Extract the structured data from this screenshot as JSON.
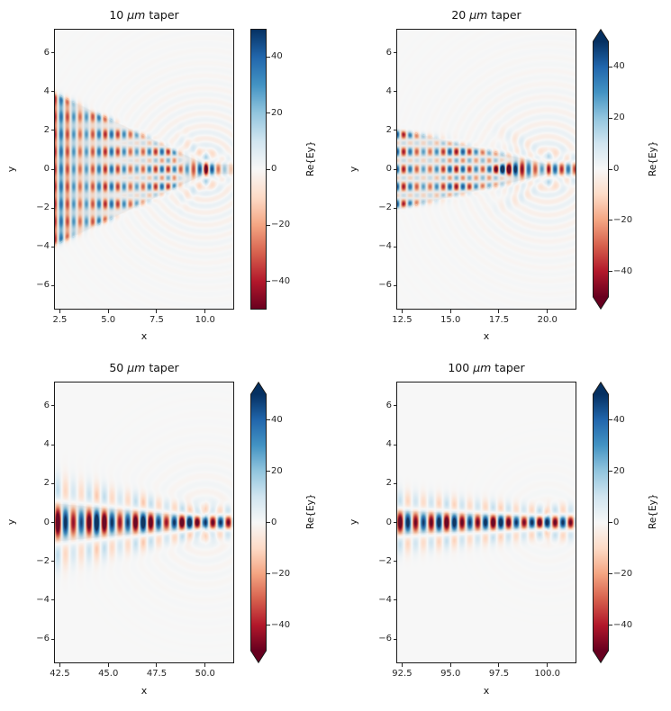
{
  "figure": {
    "kind": "matplotlib-style 2x2 field heatmaps",
    "background": "#ffffff",
    "colormap": "RdBu",
    "colormap_stops": [
      [
        103,
        0,
        31
      ],
      [
        178,
        24,
        43
      ],
      [
        214,
        96,
        77
      ],
      [
        244,
        165,
        130
      ],
      [
        253,
        219,
        199
      ],
      [
        247,
        247,
        247
      ],
      [
        209,
        229,
        240
      ],
      [
        146,
        197,
        222
      ],
      [
        67,
        147,
        195
      ],
      [
        33,
        102,
        172
      ],
      [
        5,
        48,
        97
      ]
    ],
    "plot_bg": "#f7f7f7",
    "structure_gray": [
      110,
      104,
      97
    ],
    "accent_dark_blue": "#053061",
    "accent_dark_red": "#67001f"
  },
  "chart_data": [
    {
      "type": "heatmap",
      "title": {
        "num": "10 ",
        "mu": "μm",
        "rest": " taper",
        "full": "10 μm taper"
      },
      "xlabel": "x",
      "ylabel": "y",
      "x_range": [
        2.2,
        11.5
      ],
      "y_range": [
        -7.25,
        7.25
      ],
      "x_tick_vals": [
        2.5,
        5.0,
        7.5,
        10.0
      ],
      "x_tick_labels": [
        "2.5",
        "5.0",
        "7.5",
        "10.0"
      ],
      "y_tick_vals": [
        -6,
        -4,
        -2,
        0,
        2,
        4,
        6
      ],
      "y_tick_labels": [
        "−6",
        "−4",
        "−2",
        "0",
        "2",
        "4",
        "6"
      ],
      "colorbar": {
        "label": "Re{Ey}",
        "tick_vals": [
          40,
          20,
          0,
          -20,
          -40
        ],
        "tick_labels": [
          "40",
          "20",
          "0",
          "−20",
          "−40"
        ],
        "vmin": -50,
        "vmax": 50,
        "extend": "neither"
      },
      "field": {
        "taper_length_um": 10,
        "base_halfwidth_um": 5,
        "tip_halfwidth_um": 0.25,
        "wavelength_x_um": 0.65,
        "period_y_um": 0.9,
        "amp_inside": 34,
        "mode": "multi",
        "mod_min": 0.15,
        "tip_boost": {
          "x": 10.0,
          "sigma": 0.6,
          "factor": 0.5
        },
        "beam_amp": 48,
        "beam_decay_um": 1.0,
        "arc_amp": 7,
        "arc_decay_um": 2.6,
        "beat_period_um": 2.8,
        "beat_depth": 0.18,
        "phase": 0.3
      }
    },
    {
      "type": "heatmap",
      "title": {
        "num": "20 ",
        "mu": "μm",
        "rest": " taper",
        "full": "20 μm taper"
      },
      "xlabel": "x",
      "ylabel": "y",
      "x_range": [
        12.2,
        21.5
      ],
      "y_range": [
        -7.25,
        7.25
      ],
      "x_tick_vals": [
        12.5,
        15.0,
        17.5,
        20.0
      ],
      "x_tick_labels": [
        "12.5",
        "15.0",
        "17.5",
        "20.0"
      ],
      "y_tick_vals": [
        -6,
        -4,
        -2,
        0,
        2,
        4,
        6
      ],
      "y_tick_labels": [
        "−6",
        "−4",
        "−2",
        "0",
        "2",
        "4",
        "6"
      ],
      "colorbar": {
        "label": "Re{Ey}",
        "tick_vals": [
          40,
          20,
          0,
          -20,
          -40
        ],
        "tick_labels": [
          "40",
          "20",
          "0",
          "−20",
          "−40"
        ],
        "vmin": -50,
        "vmax": 50,
        "extend": "both"
      },
      "field": {
        "taper_length_um": 20,
        "base_halfwidth_um": 5,
        "tip_halfwidth_um": 0.25,
        "wavelength_x_um": 0.68,
        "period_y_um": 0.9,
        "amp_inside": 36,
        "mode": "multi",
        "mod_min": 0.6,
        "tip_boost": {
          "x": 17.6,
          "sigma": 0.7,
          "factor": 1.0
        },
        "beam_amp": 46,
        "beam_decay_um": 5.0,
        "arc_amp": 7,
        "arc_decay_um": 2.6,
        "beat_period_um": 3.1,
        "beat_depth": 0.25,
        "phase": 0.0
      }
    },
    {
      "type": "heatmap",
      "title": {
        "num": "50 ",
        "mu": "μm",
        "rest": " taper",
        "full": "50 μm taper"
      },
      "xlabel": "x",
      "ylabel": "y",
      "x_range": [
        42.2,
        51.5
      ],
      "y_range": [
        -7.25,
        7.25
      ],
      "x_tick_vals": [
        42.5,
        45.0,
        47.5,
        50.0
      ],
      "x_tick_labels": [
        "42.5",
        "45.0",
        "47.5",
        "50.0"
      ],
      "y_tick_vals": [
        -6,
        -4,
        -2,
        0,
        2,
        4,
        6
      ],
      "y_tick_labels": [
        "−6",
        "−4",
        "−2",
        "0",
        "2",
        "4",
        "6"
      ],
      "colorbar": {
        "label": "Re{Ey}",
        "tick_vals": [
          40,
          20,
          0,
          -20,
          -40
        ],
        "tick_labels": [
          "40",
          "20",
          "0",
          "−20",
          "−40"
        ],
        "vmin": -50,
        "vmax": 50,
        "extend": "both"
      },
      "field": {
        "taper_length_um": 50,
        "base_halfwidth_um": 5,
        "tip_halfwidth_um": 0.25,
        "wavelength_x_um": 0.8,
        "period_y_um": 0.9,
        "amp_inside": 56,
        "mode": "single",
        "mod_min": 0.5,
        "tip_boost": {
          "x": 0,
          "sigma": 1,
          "factor": 0
        },
        "beam_amp": 55,
        "beam_decay_um": 14.0,
        "arc_amp": 3.5,
        "arc_decay_um": 2.2,
        "beat_period_um": 2.3,
        "beat_depth": 0.22,
        "phase": 3.14
      }
    },
    {
      "type": "heatmap",
      "title": {
        "num": "100 ",
        "mu": "μm",
        "rest": " taper",
        "full": "100 μm taper"
      },
      "xlabel": "x",
      "ylabel": "y",
      "x_range": [
        92.2,
        101.5
      ],
      "y_range": [
        -7.25,
        7.25
      ],
      "x_tick_vals": [
        92.5,
        95.0,
        97.5,
        100.0
      ],
      "x_tick_labels": [
        "92.5",
        "95.0",
        "97.5",
        "100.0"
      ],
      "y_tick_vals": [
        -6,
        -4,
        -2,
        0,
        2,
        4,
        6
      ],
      "y_tick_labels": [
        "−6",
        "−4",
        "−2",
        "0",
        "2",
        "4",
        "6"
      ],
      "colorbar": {
        "label": "Re{Ey}",
        "tick_vals": [
          40,
          20,
          0,
          -20,
          -40
        ],
        "tick_labels": [
          "40",
          "20",
          "0",
          "−20",
          "−40"
        ],
        "vmin": -50,
        "vmax": 50,
        "extend": "both"
      },
      "field": {
        "taper_length_um": 100,
        "base_halfwidth_um": 5,
        "tip_halfwidth_um": 0.25,
        "wavelength_x_um": 0.8,
        "period_y_um": 0.9,
        "amp_inside": 56,
        "mode": "single",
        "mod_min": 0.5,
        "tip_boost": {
          "x": 0,
          "sigma": 1,
          "factor": 0
        },
        "beam_amp": 55,
        "beam_decay_um": 20.0,
        "arc_amp": 2.0,
        "arc_decay_um": 1.8,
        "beat_period_um": 2.6,
        "beat_depth": 0.12,
        "phase": 0.0
      }
    }
  ]
}
